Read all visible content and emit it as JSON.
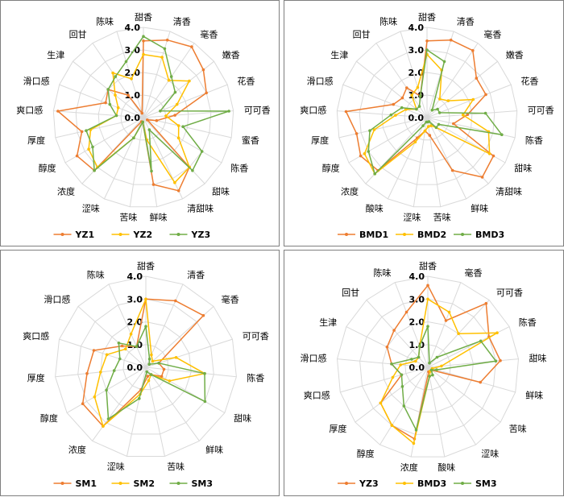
{
  "colors": {
    "s1": "#ED7D31",
    "s2": "#FFC000",
    "s3": "#70AD47",
    "grid": "#d9d9d9",
    "panel_border": "#7f7f7f"
  },
  "chart_data": [
    {
      "type": "radar",
      "ticks": [
        "0.0",
        "1.0",
        "2.0",
        "3.0",
        "4.0"
      ],
      "rlim": [
        0,
        4
      ],
      "legend": "bottom",
      "grid": true,
      "categories": [
        "甜香",
        "清香",
        "毫香",
        "嫩香",
        "花香",
        "可可香",
        "蜜香",
        "陈香",
        "甜味",
        "清甜味",
        "鲜味",
        "苦味",
        "涩味",
        "浓度",
        "醇度",
        "厚度",
        "爽口感",
        "滑口感",
        "生津",
        "回甘",
        "陈味"
      ],
      "series": [
        {
          "name": "YZ1",
          "values": [
            3.4,
            3.6,
            3.8,
            3.4,
            3.0,
            1.4,
            0.6,
            0.2,
            3.0,
            3.6,
            3.0,
            0.2,
            0.2,
            3.2,
            3.4,
            2.8,
            3.8,
            1.8,
            2.0,
            1.2,
            0.2
          ]
        },
        {
          "name": "YZ2",
          "values": [
            2.8,
            2.8,
            2.0,
            2.6,
            1.6,
            1.0,
            1.6,
            1.8,
            3.0,
            3.2,
            1.0,
            0.2,
            1.0,
            3.0,
            2.8,
            2.4,
            1.2,
            1.2,
            1.6,
            2.4,
            1.8
          ]
        },
        {
          "name": "YZ3",
          "values": [
            3.6,
            3.2,
            2.2,
            1.8,
            0.8,
            3.8,
            1.8,
            3.0,
            3.2,
            0.6,
            2.4,
            0.2,
            1.0,
            3.2,
            2.6,
            2.6,
            1.2,
            1.6,
            2.0,
            2.2,
            2.6
          ]
        }
      ]
    },
    {
      "type": "radar",
      "ticks": [
        "0.0",
        "1.0",
        "2.0",
        "3.0",
        "4.0"
      ],
      "rlim": [
        0,
        4
      ],
      "legend": "bottom",
      "grid": true,
      "categories": [
        "甜香",
        "清香",
        "毫香",
        "嫩香",
        "花香",
        "可可香",
        "陈香",
        "甜味",
        "清甜味",
        "鲜味",
        "苦味",
        "涩味",
        "酸味",
        "浓度",
        "醇度",
        "厚度",
        "爽口感",
        "滑口感",
        "生津",
        "回甘",
        "陈味"
      ],
      "series": [
        {
          "name": "BMD1",
          "values": [
            3.4,
            3.6,
            3.6,
            2.8,
            2.8,
            1.8,
            1.2,
            3.4,
            3.6,
            2.6,
            0.8,
            0.6,
            1.0,
            3.2,
            3.4,
            3.2,
            3.6,
            1.6,
            1.4,
            1.6,
            1.0
          ]
        },
        {
          "name": "BMD2",
          "values": [
            2.8,
            2.2,
            1.0,
            1.2,
            2.2,
            1.6,
            2.8,
            3.2,
            0.6,
            0.4,
            0.4,
            0.6,
            1.2,
            3.4,
            3.2,
            2.4,
            1.4,
            1.0,
            0.6,
            1.2,
            1.4
          ]
        },
        {
          "name": "BMD3",
          "values": [
            3.0,
            2.6,
            0.4,
            0.6,
            0.6,
            2.6,
            3.4,
            0.6,
            0.6,
            0.2,
            0.2,
            0.2,
            0.4,
            3.4,
            3.0,
            2.6,
            1.6,
            1.2,
            0.6,
            0.6,
            1.0
          ]
        }
      ]
    },
    {
      "type": "radar",
      "ticks": [
        "0.0",
        "1.0",
        "2.0",
        "3.0",
        "4.0"
      ],
      "rlim": [
        0,
        4
      ],
      "legend": "bottom",
      "grid": true,
      "categories": [
        "甜香",
        "清香",
        "毫香",
        "可可香",
        "陈香",
        "甜味",
        "鲜味",
        "苦味",
        "涩味",
        "浓度",
        "醇度",
        "厚度",
        "爽口感",
        "滑口感",
        "陈味"
      ],
      "series": [
        {
          "name": "SM1",
          "values": [
            3.0,
            3.2,
            3.4,
            0.6,
            0.8,
            0.8,
            0.4,
            0.4,
            1.0,
            3.2,
            3.2,
            2.6,
            2.4,
            1.4,
            1.0
          ]
        },
        {
          "name": "SM2",
          "values": [
            3.0,
            0.6,
            0.4,
            1.4,
            2.6,
            1.2,
            0.4,
            0.6,
            1.2,
            3.2,
            2.6,
            2.0,
            1.8,
            1.2,
            1.6
          ]
        },
        {
          "name": "SM3",
          "values": [
            1.8,
            0.4,
            0.2,
            0.6,
            2.6,
            3.0,
            0.4,
            0.2,
            1.4,
            2.8,
            2.0,
            1.4,
            1.2,
            1.6,
            1.0
          ]
        }
      ]
    },
    {
      "type": "radar",
      "ticks": [
        "0.0",
        "1.0",
        "2.0",
        "3.0",
        "4.0"
      ],
      "rlim": [
        0,
        4
      ],
      "legend": "bottom",
      "grid": true,
      "categories": [
        "甜香",
        "毫香",
        "可可香",
        "陈香",
        "甜味",
        "鲜味",
        "苦味",
        "涩味",
        "酸味",
        "浓度",
        "醇度",
        "厚度",
        "爽口感",
        "滑口感",
        "生津",
        "回甘",
        "陈味"
      ],
      "series": [
        {
          "name": "YZ3",
          "values": [
            3.6,
            2.2,
            3.8,
            3.0,
            3.2,
            2.4,
            0.2,
            0.2,
            0.2,
            3.2,
            3.0,
            2.6,
            1.2,
            1.6,
            2.0,
            2.2,
            2.6
          ]
        },
        {
          "name": "BMD3",
          "values": [
            3.0,
            2.6,
            2.0,
            3.4,
            0.6,
            0.2,
            0.2,
            0.2,
            0.4,
            3.4,
            3.0,
            2.6,
            1.6,
            1.2,
            0.6,
            0.6,
            1.0
          ]
        },
        {
          "name": "SM3",
          "values": [
            1.8,
            0.2,
            0.6,
            2.6,
            3.0,
            0.4,
            0.2,
            0.4,
            0.4,
            2.8,
            2.0,
            1.4,
            1.2,
            1.6,
            0.8,
            0.6,
            1.0
          ]
        }
      ]
    }
  ]
}
